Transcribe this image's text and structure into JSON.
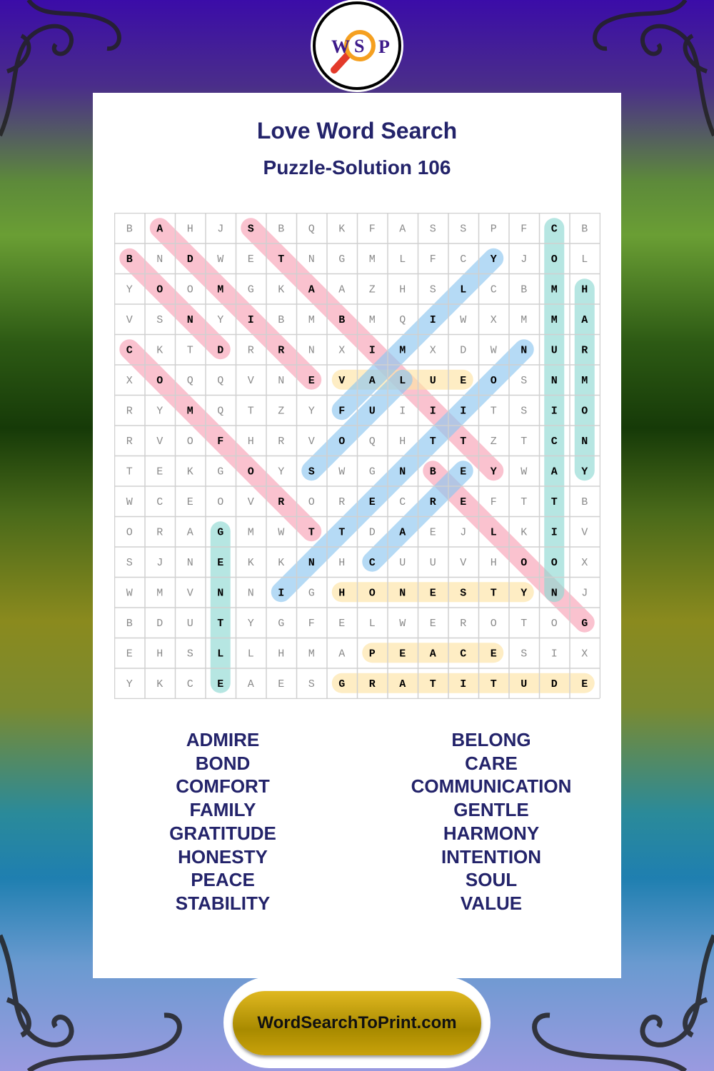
{
  "logo": {
    "letters": [
      "W",
      "S",
      "P"
    ],
    "icon": "magnifier-icon"
  },
  "header": {
    "title": "Love Word Search",
    "subtitle": "Puzzle-Solution 106"
  },
  "puzzle": {
    "grid": [
      "BAHJSBQKFASSPFCB",
      "BNDWETNGMLFCYJOL",
      "YOOMGKAAZHSLCBMH",
      "VSNYIBMBMQIWXMMA",
      "CKTDRRNXIMXDWNUR",
      "XOQQVNEVALUEOSNM",
      "RYMQTZYFUIIITSIO",
      "RVOFHRVOQHTTZTCN",
      "TEKGOYSWGNBEYWAY",
      "WCEOVRORECREFTTB",
      "ORAGMWTTDAEJLKIV",
      "SJNEKKNHCUUVHOOX",
      "WMVNNIGHONESTYNJ",
      "BDUTYGFELWEROTOG",
      "EHSLLHMAPEACESIX",
      "YKCEAESGRATITUDE"
    ],
    "highlight_colors": {
      "pink": "#f7a1b5",
      "blue": "#8ec6f0",
      "teal": "#8fd8d2",
      "yellow": "#fde3a4"
    },
    "solutions": [
      {
        "word": "ADMIRE",
        "start": [
          0,
          1
        ],
        "end": [
          5,
          6
        ],
        "color": "pink"
      },
      {
        "word": "BOND",
        "start": [
          1,
          0
        ],
        "end": [
          4,
          3
        ],
        "color": "pink"
      },
      {
        "word": "STABILITY",
        "start": [
          0,
          4
        ],
        "end": [
          8,
          12
        ],
        "color": "pink"
      },
      {
        "word": "COMFORT",
        "start": [
          4,
          0
        ],
        "end": [
          10,
          6
        ],
        "color": "pink"
      },
      {
        "word": "BELONG",
        "start": [
          8,
          10
        ],
        "end": [
          13,
          15
        ],
        "color": "pink"
      },
      {
        "word": "VALUE",
        "start": [
          5,
          7
        ],
        "end": [
          5,
          11
        ],
        "color": "yellow"
      },
      {
        "word": "HONESTY",
        "start": [
          12,
          7
        ],
        "end": [
          12,
          13
        ],
        "color": "yellow"
      },
      {
        "word": "PEACE",
        "start": [
          14,
          8
        ],
        "end": [
          14,
          12
        ],
        "color": "yellow"
      },
      {
        "word": "GRATITUDE",
        "start": [
          15,
          7
        ],
        "end": [
          15,
          15
        ],
        "color": "yellow"
      },
      {
        "word": "FAMILY",
        "start": [
          6,
          7
        ],
        "end": [
          1,
          12
        ],
        "color": "blue"
      },
      {
        "word": "SOUL",
        "start": [
          8,
          6
        ],
        "end": [
          5,
          9
        ],
        "color": "blue"
      },
      {
        "word": "INTENTION",
        "start": [
          12,
          5
        ],
        "end": [
          4,
          13
        ],
        "color": "blue"
      },
      {
        "word": "CARE",
        "start": [
          11,
          8
        ],
        "end": [
          8,
          11
        ],
        "color": "blue"
      },
      {
        "word": "COMMUNICATION",
        "start": [
          0,
          14
        ],
        "end": [
          12,
          14
        ],
        "color": "teal"
      },
      {
        "word": "HARMONY",
        "start": [
          2,
          15
        ],
        "end": [
          8,
          15
        ],
        "color": "teal"
      },
      {
        "word": "GENTLE",
        "start": [
          10,
          3
        ],
        "end": [
          15,
          3
        ],
        "color": "teal"
      }
    ]
  },
  "word_list": {
    "left": [
      "ADMIRE",
      "BOND",
      "COMFORT",
      "FAMILY",
      "GRATITUDE",
      "HONESTY",
      "PEACE",
      "STABILITY"
    ],
    "right": [
      "BELONG",
      "CARE",
      "COMMUNICATION",
      "GENTLE",
      "HARMONY",
      "INTENTION",
      "SOUL",
      "VALUE"
    ]
  },
  "footer": {
    "site": "WordSearchToPrint.com"
  }
}
